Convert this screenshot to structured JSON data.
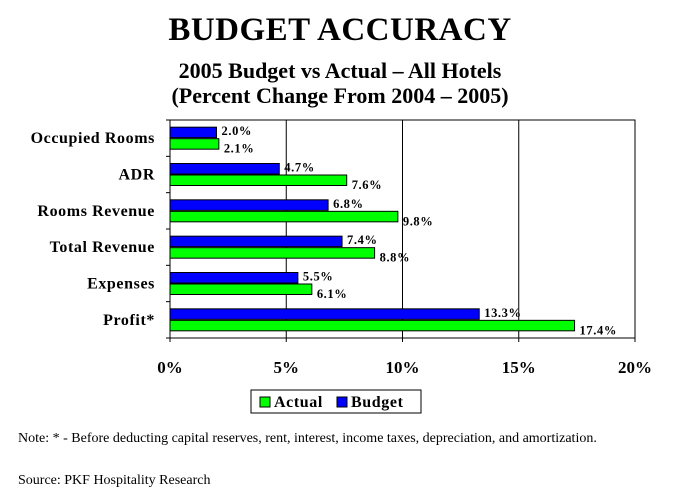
{
  "chart_data": {
    "type": "bar",
    "orientation": "horizontal",
    "title": "BUDGET ACCURACY",
    "subtitle": "2005 Budget vs Actual – All Hotels",
    "subtitle2": "(Percent Change From 2004 – 2005)",
    "categories": [
      "Occupied Rooms",
      "ADR",
      "Rooms Revenue",
      "Total Revenue",
      "Expenses",
      "Profit*"
    ],
    "series": [
      {
        "name": "Budget",
        "color": "#0000ff",
        "values": [
          2.0,
          4.7,
          6.8,
          7.4,
          5.5,
          13.3
        ],
        "labels": [
          "2.0%",
          "4.7%",
          "6.8%",
          "7.4%",
          "5.5%",
          "13.3%"
        ]
      },
      {
        "name": "Actual",
        "color": "#00ff00",
        "values": [
          2.1,
          7.6,
          9.8,
          8.8,
          6.1,
          17.4
        ],
        "labels": [
          "2.1%",
          "7.6%",
          "9.8%",
          "8.8%",
          "6.1%",
          "17.4%"
        ]
      }
    ],
    "xlim": [
      0,
      20
    ],
    "xticks": [
      "0%",
      "5%",
      "10%",
      "15%",
      "20%"
    ],
    "grid": true,
    "legend_position": "bottom",
    "legend_order": [
      "Actual",
      "Budget"
    ]
  },
  "note": "Note: * - Before deducting capital reserves, rent, interest, income taxes, depreciation, and amortization.",
  "source": "Source: PKF Hospitality Research"
}
